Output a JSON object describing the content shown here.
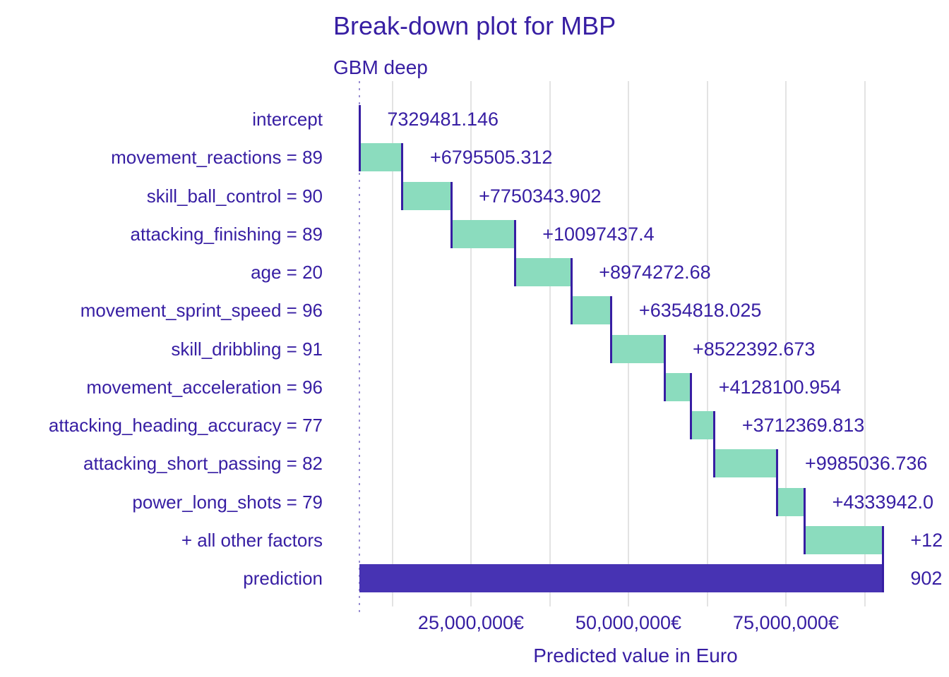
{
  "title": "Break-down plot for MBP",
  "subtitle": "GBM deep",
  "colors": {
    "text": "#371ea3",
    "positive_bar": "#8bdcbe",
    "prediction_bar": "#4733b3",
    "connector": "#371ea3",
    "gridline": "#e3e3e3",
    "baseline_dotted": "#9a8fd2",
    "background": "#ffffff"
  },
  "x_axis": {
    "label": "Predicted value in Euro",
    "ticks": [
      {
        "value": 25000000,
        "label": "25,000,000€"
      },
      {
        "value": 50000000,
        "label": "50,000,000€"
      },
      {
        "value": 75000000,
        "label": "75,000,000€"
      }
    ],
    "minor_gridline_values": [
      12500000,
      37500000,
      62500000,
      87500000
    ]
  },
  "chart_data": {
    "type": "bar",
    "variant": "waterfall-breakdown",
    "title": "Break-down plot for MBP",
    "subtitle": "GBM deep",
    "xlabel": "Predicted value in Euro",
    "xlim": [
      3200000,
      94400000
    ],
    "grid": "vertical-only",
    "intercept_value": 7329481.146,
    "rows": [
      {
        "label": "intercept",
        "kind": "intercept",
        "value_label": "7329481.146",
        "contribution": 7329481.146,
        "start": 0,
        "end": 7329481.146,
        "truncated": false
      },
      {
        "label": "movement_reactions = 89",
        "kind": "positive",
        "value_label": "+6795505.312",
        "contribution": 6795505.312,
        "start": 7329481.146,
        "end": 14124986.458,
        "truncated": false
      },
      {
        "label": "skill_ball_control = 90",
        "kind": "positive",
        "value_label": "+7750343.902",
        "contribution": 7750343.902,
        "start": 14124986.458,
        "end": 21875330.36,
        "truncated": false
      },
      {
        "label": "attacking_finishing = 89",
        "kind": "positive",
        "value_label": "+10097437.4",
        "contribution": 10097437.4,
        "start": 21875330.36,
        "end": 31972767.76,
        "truncated": false
      },
      {
        "label": "age = 20",
        "kind": "positive",
        "value_label": "+8974272.68",
        "contribution": 8974272.68,
        "start": 31972767.76,
        "end": 40947040.44,
        "truncated": false
      },
      {
        "label": "movement_sprint_speed = 96",
        "kind": "positive",
        "value_label": "+6354818.025",
        "contribution": 6354818.025,
        "start": 40947040.44,
        "end": 47301858.465,
        "truncated": false
      },
      {
        "label": "skill_dribbling = 91",
        "kind": "positive",
        "value_label": "+8522392.673",
        "contribution": 8522392.673,
        "start": 47301858.465,
        "end": 55824251.138,
        "truncated": false
      },
      {
        "label": "movement_acceleration = 96",
        "kind": "positive",
        "value_label": "+4128100.954",
        "contribution": 4128100.954,
        "start": 55824251.138,
        "end": 59952352.092,
        "truncated": false
      },
      {
        "label": "attacking_heading_accuracy = 77",
        "kind": "positive",
        "value_label": "+3712369.813",
        "contribution": 3712369.813,
        "start": 59952352.092,
        "end": 63664721.905,
        "truncated": false
      },
      {
        "label": "attacking_short_passing = 82",
        "kind": "positive",
        "value_label": "+9985036.736",
        "contribution": 9985036.736,
        "start": 63664721.905,
        "end": 73649758.641,
        "truncated": false
      },
      {
        "label": "power_long_shots = 79",
        "kind": "positive",
        "value_label": "+4333942.0",
        "contribution": 4333942.0,
        "start": 73649758.641,
        "end": 77983700.641,
        "truncated": true
      },
      {
        "label": "+ all other factors",
        "kind": "positive",
        "value_label": "+12",
        "contribution": null,
        "start": 77983700.641,
        "end": 90400000,
        "truncated": true
      },
      {
        "label": "prediction",
        "kind": "prediction",
        "value_label": "902",
        "contribution": null,
        "start": 7329481.146,
        "end": 90400000,
        "truncated": true
      }
    ]
  }
}
